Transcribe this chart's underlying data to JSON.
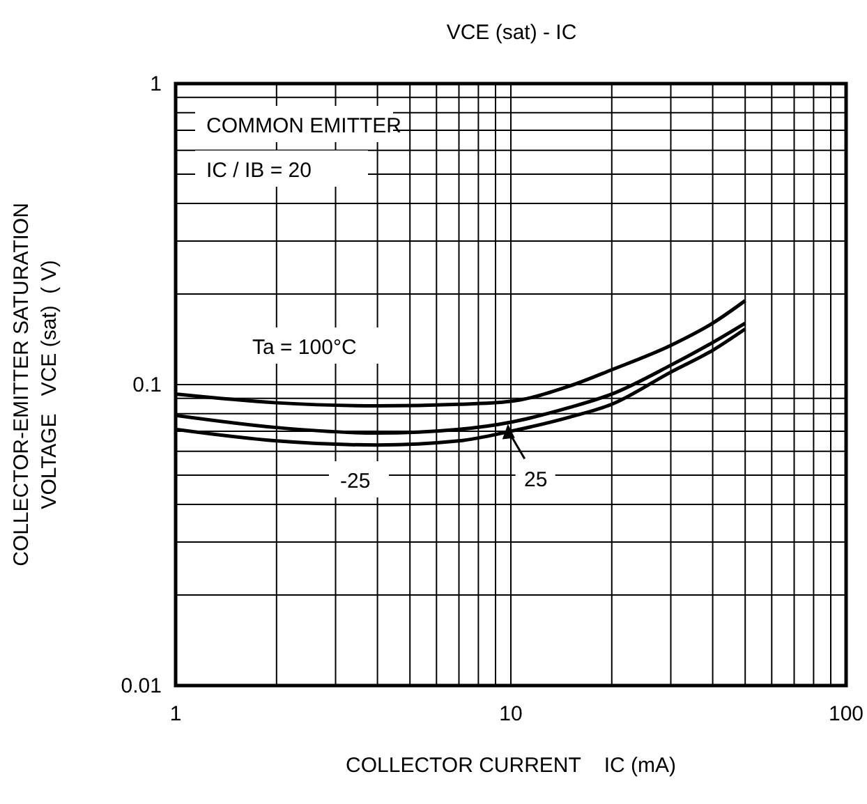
{
  "chart_data": {
    "type": "line",
    "title": "VCE (sat) - IC",
    "xlabel": "COLLECTOR CURRENT    IC (mA)",
    "ylabel": "COLLECTOR-EMITTER SATURATION\nVOLTAGE   VCE (sat)  ( V)",
    "log": "xy",
    "grid": true,
    "line_style": "solid",
    "marker": "none",
    "xlim": [
      1,
      100
    ],
    "xticks": [
      1,
      10,
      100
    ],
    "ylim": [
      0.01,
      1
    ],
    "yticks": [
      0.01,
      0.1,
      1
    ],
    "series": [
      {
        "color": "#000000",
        "x": [
          1,
          2,
          4,
          7,
          10,
          15,
          20,
          30,
          40,
          50
        ],
        "values": [
          0.093,
          0.087,
          0.085,
          0.086,
          0.088,
          0.099,
          0.112,
          0.135,
          0.16,
          0.19
        ]
      },
      {
        "color": "#000000",
        "x": [
          1,
          2,
          4,
          7,
          10,
          15,
          20,
          30,
          40,
          50
        ],
        "values": [
          0.079,
          0.072,
          0.069,
          0.071,
          0.075,
          0.084,
          0.093,
          0.116,
          0.138,
          0.16
        ]
      },
      {
        "color": "#000000",
        "x": [
          1,
          2,
          4,
          7,
          10,
          15,
          20,
          30,
          40,
          50
        ],
        "values": [
          0.071,
          0.065,
          0.063,
          0.065,
          0.07,
          0.078,
          0.086,
          0.11,
          0.13,
          0.153
        ]
      }
    ],
    "annotations": [
      "COMMON EMITTER",
      "IC / IB = 20",
      "Ta = 100°C",
      "-25",
      {
        "text": "25",
        "x": 9.8,
        "y": 0.074
      }
    ]
  }
}
